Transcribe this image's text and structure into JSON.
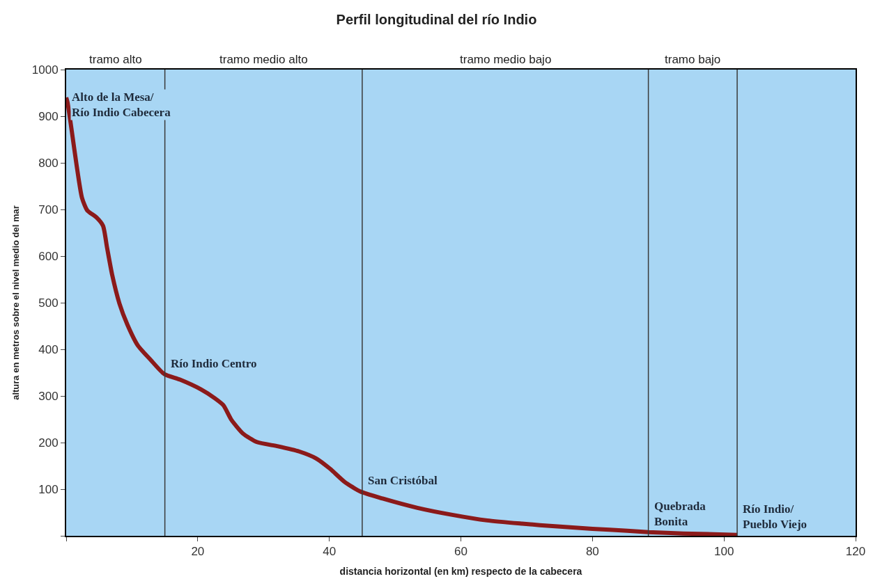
{
  "chart_data": {
    "type": "line",
    "title": "Perfil longitudinal del río Indio",
    "xlabel": "distancia horizontal (en km) respecto de la cabecera",
    "ylabel": "altura en metros sobre el nivel medio del mar",
    "x": [
      0,
      0.2,
      0.85,
      1.6,
      2.4,
      3.2,
      4.6,
      5.6,
      6.2,
      7,
      8.1,
      9.3,
      10.9,
      12.8,
      14.9,
      17.3,
      20.5,
      22.6,
      23.9,
      25.1,
      26.9,
      29,
      32.2,
      35.4,
      38,
      40.1,
      42.3,
      44.7,
      48.1,
      53.4,
      58.7,
      64,
      69.3,
      74.7,
      80,
      85.3,
      88.5,
      93.8,
      102
    ],
    "series": [
      {
        "color": "#8b1a1a",
        "values": [
          940,
          930,
          868,
          793,
          725,
          698,
          683,
          665,
          619,
          559,
          498,
          453,
          408,
          378,
          347,
          335,
          314,
          295,
          280,
          249,
          219,
          201,
          192,
          181,
          166,
          144,
          116,
          95,
          80,
          60,
          45,
          33,
          26,
          20,
          15,
          11,
          8,
          5,
          2
        ]
      }
    ],
    "xlim": [
      0,
      120
    ],
    "xticks": [
      {
        "value": 0,
        "label": null
      },
      20,
      40,
      60,
      80,
      100,
      120
    ],
    "ylim": [
      0,
      1000
    ],
    "yticks": [
      {
        "value": 0,
        "label": null
      },
      100,
      200,
      300,
      400,
      500,
      600,
      700,
      800,
      900,
      1000
    ],
    "grid": false,
    "marker": "none",
    "line_style": "solid",
    "ref_lines": [
      {
        "axis": "x",
        "value": 15,
        "color": "#3a3a3a"
      },
      {
        "axis": "x",
        "value": 45,
        "color": "#3a3a3a"
      },
      {
        "axis": "x",
        "value": 88.5,
        "color": "#3a3a3a"
      },
      {
        "axis": "x",
        "value": 102,
        "color": "#3a3a3a"
      }
    ],
    "annotations": [
      "tramo alto",
      "tramo medio alto",
      "tramo medio bajo",
      "tramo bajo",
      {
        "text": "Alto de la Mesa/\nRío Indio Cabecera",
        "x": 0,
        "y": 940
      },
      {
        "text": "Río Indio Centro",
        "x": 15,
        "y": 347
      },
      {
        "text": "San Cristóbal",
        "x": 45,
        "y": 95
      },
      {
        "text": "Quebrada\nBonita",
        "x": 88.5,
        "y": 8
      },
      {
        "text": "Río Indio/\nPueblo Viejo",
        "x": 102,
        "y": 2
      }
    ]
  }
}
